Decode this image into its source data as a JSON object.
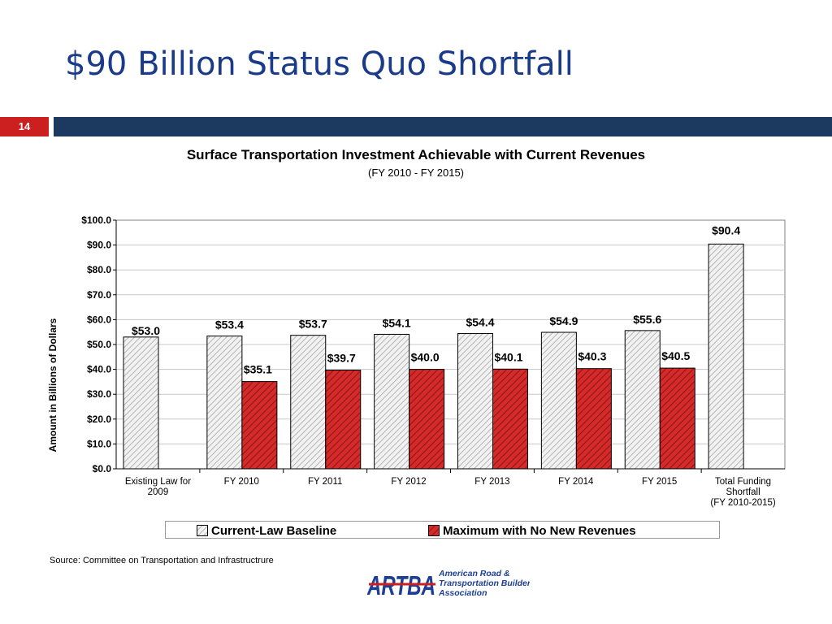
{
  "slide": {
    "title": "$90 Billion Status Quo Shortfall",
    "page_number": "14",
    "source": "Source: Committee on Transportation and Infrastructrure"
  },
  "logo": {
    "mark": "ARTBA",
    "line1": "American Road &",
    "line2": "Transportation Builders",
    "line3": "Association"
  },
  "colors": {
    "title": "#1a3a8a",
    "header_bar": "#1c3a5f",
    "badge": "#cc1f1f",
    "baseline_fill": "#e8e8e8",
    "no_new_revenue_fill": "#d42a2a"
  },
  "chart_data": {
    "type": "bar",
    "title": "Surface Transportation Investment Achievable with Current Revenues",
    "subtitle": "(FY 2010 - FY 2015)",
    "ylabel": "Amount in Billions of Dollars",
    "xlabel": "",
    "ylim": [
      0,
      100
    ],
    "yticks": [
      0,
      10,
      20,
      30,
      40,
      50,
      60,
      70,
      80,
      90,
      100
    ],
    "ytick_labels": [
      "$0.0",
      "$10.0",
      "$20.0",
      "$30.0",
      "$40.0",
      "$50.0",
      "$60.0",
      "$70.0",
      "$80.0",
      "$90.0",
      "$100.0"
    ],
    "grid": true,
    "legend_position": "bottom",
    "categories": [
      [
        "Existing Law for",
        "2009"
      ],
      [
        "FY 2010"
      ],
      [
        "FY 2011"
      ],
      [
        "FY 2012"
      ],
      [
        "FY 2013"
      ],
      [
        "FY 2014"
      ],
      [
        "FY 2015"
      ],
      [
        "Total Funding",
        "Shortfall",
        "(FY 2010-2015)"
      ]
    ],
    "series": [
      {
        "name": "Current-Law Baseline",
        "values": [
          53.0,
          53.4,
          53.7,
          54.1,
          54.4,
          54.9,
          55.6,
          90.4
        ],
        "labels": [
          "$53.0",
          "$53.4",
          "$53.7",
          "$54.1",
          "$54.4",
          "$54.9",
          "$55.6",
          "$90.4"
        ]
      },
      {
        "name": "Maximum with No New Revenues",
        "values": [
          null,
          35.1,
          39.7,
          40.0,
          40.1,
          40.3,
          40.5,
          null
        ],
        "labels": [
          "",
          "$35.1",
          "$39.7",
          "$40.0",
          "$40.1",
          "$40.3",
          "$40.5",
          ""
        ]
      }
    ]
  }
}
